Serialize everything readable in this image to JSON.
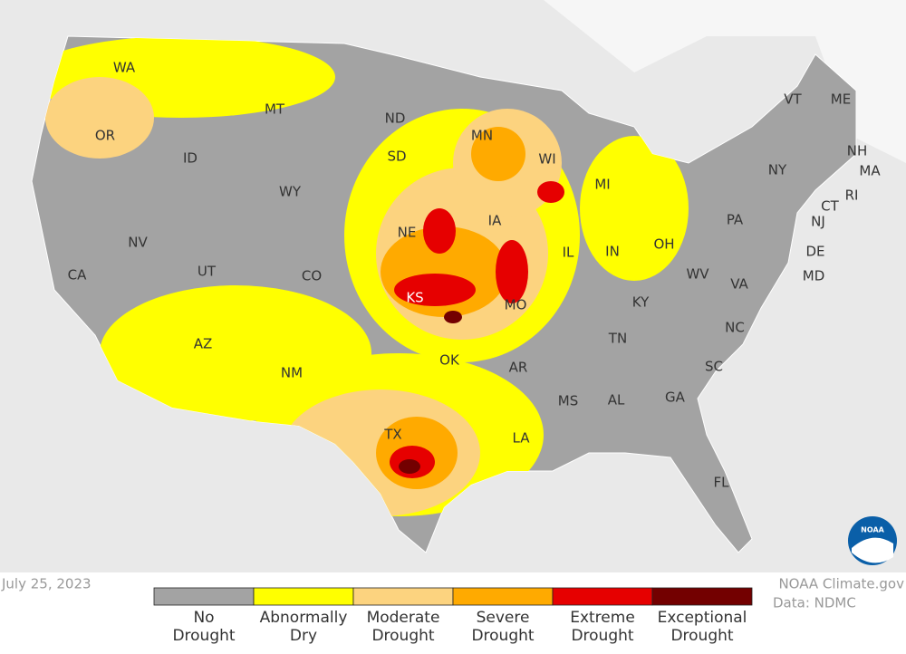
{
  "date": "July 25, 2023",
  "credit": [
    "NOAA Climate.gov",
    "Data: NDMC"
  ],
  "legend": [
    {
      "lines": [
        "No",
        "Drought"
      ],
      "color": "#a3a3a3"
    },
    {
      "lines": [
        "Abnormally",
        "Dry"
      ],
      "color": "#ffff00"
    },
    {
      "lines": [
        "Moderate",
        "Drought"
      ],
      "color": "#fcd37f"
    },
    {
      "lines": [
        "Severe",
        "Drought"
      ],
      "color": "#ffaa00"
    },
    {
      "lines": [
        "Extreme",
        "Drought"
      ],
      "color": "#e60000"
    },
    {
      "lines": [
        "Exceptional",
        "Drought"
      ],
      "color": "#730000"
    }
  ],
  "logo": "NOAA",
  "states": [
    "WA",
    "OR",
    "CA",
    "NV",
    "ID",
    "MT",
    "WY",
    "UT",
    "AZ",
    "CO",
    "NM",
    "ND",
    "SD",
    "NE",
    "KS",
    "OK",
    "TX",
    "MN",
    "IA",
    "MO",
    "AR",
    "LA",
    "WI",
    "IL",
    "MI",
    "IN",
    "OH",
    "KY",
    "TN",
    "MS",
    "AL",
    "GA",
    "FL",
    "SC",
    "NC",
    "VA",
    "WV",
    "PA",
    "NY",
    "VT",
    "NH",
    "ME",
    "MA",
    "CT",
    "RI",
    "NJ",
    "DE",
    "MD"
  ]
}
